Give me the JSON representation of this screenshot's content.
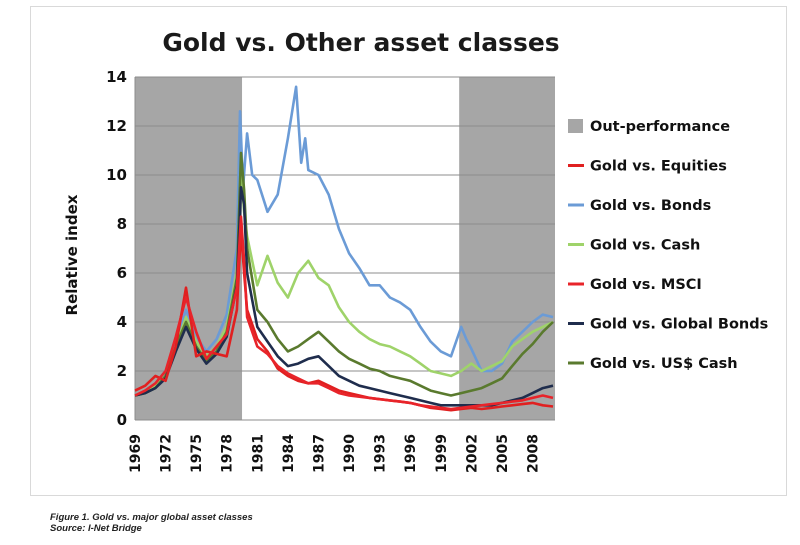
{
  "caption": {
    "line1": "Figure 1. Gold vs. major global asset classes",
    "line2": "Source: I-Net Bridge"
  },
  "chart_data": {
    "type": "line",
    "title": "Gold vs. Other asset classes",
    "xlabel": "",
    "ylabel": "Relative index",
    "ylim": [
      0,
      14
    ],
    "xlim": [
      1969,
      2010.2
    ],
    "yticks": [
      "0",
      "2",
      "4",
      "6",
      "8",
      "10",
      "12",
      "14"
    ],
    "xticks": [
      "1969",
      "1972",
      "1975",
      "1978",
      "1981",
      "1984",
      "1987",
      "1990",
      "1993",
      "1996",
      "1999",
      "2002",
      "2005",
      "2008"
    ],
    "grid": "horizontal",
    "legend_position": "right",
    "outperformance_periods": [
      [
        1969,
        1979.5
      ],
      [
        2000.8,
        2010.2
      ]
    ],
    "legend": [
      {
        "label": "Out-performance",
        "color": "#a6a6a6",
        "kind": "patch"
      },
      {
        "label": "Gold vs. Equities",
        "color": "#e02020",
        "kind": "line"
      },
      {
        "label": "Gold vs. Bonds",
        "color": "#6b9bd6",
        "kind": "line"
      },
      {
        "label": "Gold vs. Cash",
        "color": "#9fd36a",
        "kind": "line"
      },
      {
        "label": "Gold vs. MSCI",
        "color": "#e8242a",
        "kind": "line"
      },
      {
        "label": "Gold vs. Global Bonds",
        "color": "#1f2d4d",
        "kind": "line"
      },
      {
        "label": "Gold vs. US$ Cash",
        "color": "#5a7a2e",
        "kind": "line"
      }
    ],
    "series": [
      {
        "name": "Gold vs. Bonds",
        "color": "#6b9bd6",
        "x": [
          1969,
          1970,
          1971,
          1972,
          1973,
          1974,
          1975,
          1976,
          1977,
          1978,
          1979,
          1979.3,
          1979.6,
          1980,
          1980.5,
          1981,
          1982,
          1983,
          1984,
          1984.8,
          1985.3,
          1985.7,
          1986,
          1987,
          1988,
          1989,
          1990,
          1991,
          1992,
          1993,
          1994,
          1995,
          1996,
          1997,
          1998,
          1999,
          2000,
          2001,
          2001.5,
          2002,
          2003,
          2004,
          2005,
          2006,
          2007,
          2008,
          2009,
          2010
        ],
        "y": [
          1.0,
          1.2,
          1.5,
          2.0,
          3.2,
          4.5,
          3.4,
          2.8,
          3.3,
          4.3,
          7.0,
          12.6,
          9.5,
          11.7,
          10.0,
          9.8,
          8.5,
          9.2,
          11.5,
          13.6,
          10.5,
          11.5,
          10.2,
          10.0,
          9.2,
          7.8,
          6.8,
          6.2,
          5.5,
          5.5,
          5.0,
          4.8,
          4.5,
          3.8,
          3.2,
          2.8,
          2.6,
          3.8,
          3.3,
          2.9,
          2.0,
          2.0,
          2.3,
          3.2,
          3.6,
          4.0,
          4.3,
          4.2
        ]
      },
      {
        "name": "Gold vs. Cash",
        "color": "#9fd36a",
        "x": [
          1969,
          1970,
          1971,
          1972,
          1973,
          1974,
          1975,
          1976,
          1977,
          1978,
          1979,
          1979.4,
          1979.7,
          1980,
          1981,
          1982,
          1983,
          1984,
          1985,
          1986,
          1987,
          1988,
          1989,
          1990,
          1991,
          1992,
          1993,
          1994,
          1995,
          1996,
          1997,
          1998,
          1999,
          2000,
          2001,
          2002,
          2003,
          2004,
          2005,
          2006,
          2007,
          2008,
          2009,
          2010
        ],
        "y": [
          1.0,
          1.1,
          1.4,
          1.8,
          3.0,
          4.2,
          3.2,
          2.6,
          3.0,
          3.8,
          6.0,
          10.3,
          8.5,
          7.5,
          5.5,
          6.7,
          5.6,
          5.0,
          6.0,
          6.5,
          5.8,
          5.5,
          4.6,
          4.0,
          3.6,
          3.3,
          3.1,
          3.0,
          2.8,
          2.6,
          2.3,
          2.0,
          1.9,
          1.8,
          2.0,
          2.3,
          2.0,
          2.2,
          2.4,
          3.0,
          3.3,
          3.6,
          3.8,
          4.0
        ]
      },
      {
        "name": "Gold vs. US$ Cash",
        "color": "#5a7a2e",
        "x": [
          1969,
          1970,
          1971,
          1972,
          1973,
          1974,
          1975,
          1976,
          1977,
          1978,
          1979,
          1979.4,
          1979.7,
          1980,
          1981,
          1982,
          1983,
          1984,
          1985,
          1986,
          1987,
          1988,
          1989,
          1990,
          1991,
          1992,
          1993,
          1994,
          1995,
          1996,
          1997,
          1998,
          1999,
          2000,
          2001,
          2002,
          2003,
          2004,
          2005,
          2006,
          2007,
          2008,
          2009,
          2010
        ],
        "y": [
          1.0,
          1.1,
          1.3,
          1.8,
          3.0,
          4.0,
          3.0,
          2.4,
          2.8,
          3.6,
          5.8,
          10.9,
          9.4,
          7.0,
          4.5,
          4.0,
          3.3,
          2.8,
          3.0,
          3.3,
          3.6,
          3.2,
          2.8,
          2.5,
          2.3,
          2.1,
          2.0,
          1.8,
          1.7,
          1.6,
          1.4,
          1.2,
          1.1,
          1.0,
          1.1,
          1.2,
          1.3,
          1.5,
          1.7,
          2.2,
          2.7,
          3.1,
          3.6,
          4.0
        ]
      },
      {
        "name": "Gold vs. Global Bonds",
        "color": "#1f2d4d",
        "x": [
          1969,
          1970,
          1971,
          1972,
          1973,
          1974,
          1975,
          1976,
          1977,
          1978,
          1979,
          1979.4,
          1979.7,
          1980,
          1981,
          1982,
          1983,
          1984,
          1985,
          1986,
          1987,
          1988,
          1989,
          1990,
          1991,
          1992,
          1993,
          1994,
          1995,
          1996,
          1997,
          1998,
          1999,
          2000,
          2001,
          2002,
          2003,
          2004,
          2005,
          2006,
          2007,
          2008,
          2009,
          2010
        ],
        "y": [
          1.0,
          1.1,
          1.3,
          1.7,
          2.8,
          3.8,
          2.9,
          2.3,
          2.7,
          3.4,
          5.5,
          9.5,
          8.8,
          6.0,
          3.8,
          3.2,
          2.6,
          2.2,
          2.3,
          2.5,
          2.6,
          2.2,
          1.8,
          1.6,
          1.4,
          1.3,
          1.2,
          1.1,
          1.0,
          0.9,
          0.8,
          0.7,
          0.6,
          0.6,
          0.6,
          0.6,
          0.6,
          0.6,
          0.7,
          0.8,
          0.9,
          1.1,
          1.3,
          1.4
        ]
      },
      {
        "name": "Gold vs. Equities",
        "color": "#e02020",
        "x": [
          1969,
          1970,
          1971,
          1972,
          1973,
          1974,
          1975,
          1976,
          1977,
          1978,
          1979,
          1979.4,
          1979.7,
          1980,
          1981,
          1982,
          1983,
          1984,
          1985,
          1986,
          1987,
          1988,
          1989,
          1990,
          1991,
          1992,
          1993,
          1994,
          1995,
          1996,
          1997,
          1998,
          1999,
          2000,
          2001,
          2002,
          2003,
          2004,
          2005,
          2006,
          2007,
          2008,
          2009,
          2010
        ],
        "y": [
          1.2,
          1.4,
          1.8,
          1.6,
          3.0,
          5.4,
          2.6,
          2.8,
          2.7,
          2.6,
          4.5,
          7.8,
          6.0,
          4.5,
          3.3,
          2.8,
          2.1,
          1.8,
          1.6,
          1.5,
          1.6,
          1.4,
          1.2,
          1.1,
          1.0,
          0.9,
          0.85,
          0.8,
          0.75,
          0.7,
          0.6,
          0.5,
          0.45,
          0.4,
          0.45,
          0.5,
          0.45,
          0.5,
          0.55,
          0.6,
          0.65,
          0.7,
          0.6,
          0.55
        ]
      },
      {
        "name": "Gold vs. MSCI",
        "color": "#e8242a",
        "x": [
          1969,
          1970,
          1971,
          1972,
          1973,
          1974,
          1975,
          1976,
          1977,
          1978,
          1979,
          1979.4,
          1979.7,
          1980,
          1981,
          1982,
          1983,
          1984,
          1985,
          1986,
          1987,
          1988,
          1989,
          1990,
          1991,
          1992,
          1993,
          1994,
          1995,
          1996,
          1997,
          1998,
          1999,
          2000,
          2001,
          2002,
          2003,
          2004,
          2005,
          2006,
          2007,
          2008,
          2009,
          2010
        ],
        "y": [
          1.0,
          1.2,
          1.5,
          2.0,
          3.4,
          5.0,
          3.6,
          2.5,
          3.0,
          3.5,
          5.4,
          8.3,
          6.5,
          4.2,
          3.0,
          2.7,
          2.2,
          1.9,
          1.7,
          1.5,
          1.5,
          1.3,
          1.1,
          1.0,
          0.95,
          0.9,
          0.85,
          0.8,
          0.75,
          0.7,
          0.6,
          0.55,
          0.5,
          0.45,
          0.5,
          0.55,
          0.6,
          0.65,
          0.7,
          0.75,
          0.8,
          0.9,
          1.0,
          0.9
        ]
      }
    ]
  }
}
